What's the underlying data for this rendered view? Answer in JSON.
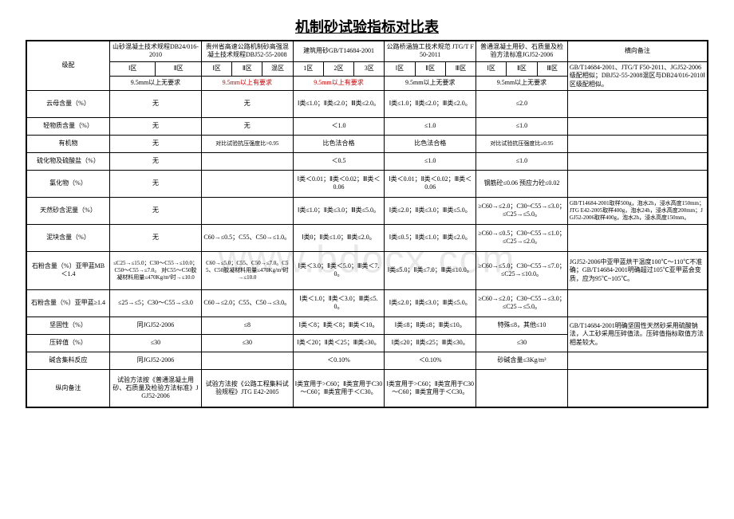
{
  "title": "机制砂试验指标对比表",
  "headers": {
    "col1": "山砂混凝土技术规程DB24/016-2010",
    "col2": "贵州省高速公路机制砂高强混凝土技术规程DBJ52-55-2008",
    "col3": "建筑用砂GB/T14684-2001",
    "col4": "公路桥涵施工技术规范 JTG/T F50-2011",
    "col5": "普通混凝土用砂、石质量及检验方法标准JGJ52-2006",
    "col6": "横向备注"
  },
  "zones": {
    "label": "级配",
    "c1a": "Ⅰ区",
    "c1b": "Ⅱ区",
    "c2a": "Ⅰ区",
    "c2b": "Ⅱ区",
    "c2c": "混区",
    "c3a": "1区",
    "c3b": "2区",
    "c3c": "3区",
    "c4a": "Ⅰ区",
    "c4b": "Ⅱ区",
    "c4c": "Ⅲ区",
    "c5a": "Ⅰ区",
    "c5b": "Ⅱ区",
    "c5c": "Ⅲ区",
    "r2c1": "9.5mm以上无要求",
    "r2c2": "9.5mm以上有要求",
    "r2c3": "9.5mm以上有要求",
    "r2c4": "9.5mm以上无要求",
    "r2c5": "9.5mm以上无要求",
    "r2note": "GB/T14684-2001、JTG/T F50-2011、JGJ52-2006级配相似；DBJ52-55-2008混区与DB24/016-2010Ⅰ区级配相似。"
  },
  "rows": {
    "yunmu": {
      "label": "云母含量（%）",
      "c1": "无",
      "c2": "无",
      "c3": "Ⅰ类≤1.0；Ⅱ类≤2.0；Ⅲ类≤2.0。",
      "c4": "Ⅰ类≤1.0；Ⅱ类≤2.0；Ⅲ类≤2.0。",
      "c5": "≤2.0",
      "note": ""
    },
    "qingwu": {
      "label": "轻物质含量（%）",
      "c1": "无",
      "c2": "无",
      "c3": "＜1.0",
      "c4": "≤1.0",
      "c5": "≤1.0",
      "note": ""
    },
    "youji": {
      "label": "有机物",
      "c1": "无",
      "c2": "对比试验抗压强度比>0.95",
      "c3": "比色法合格",
      "c4": "比色法合格",
      "c5": "对比试验抗压强度比≥0.95",
      "note": ""
    },
    "liuhua": {
      "label": "硫化物及硫酸盐（%）",
      "c1": "无",
      "c2": "",
      "c3": "＜0.5",
      "c4": "≤1.0",
      "c5": "≤1.0",
      "note": ""
    },
    "lvhua": {
      "label": "氯化物（%）",
      "c1": "无",
      "c2": "",
      "c3": "Ⅰ类＜0.01；Ⅱ类＜0.02；Ⅲ类＜0.06",
      "c4": "Ⅰ类＜0.01；Ⅱ类＜0.02；Ⅲ类＜0.06",
      "c5": "钢筋砼≤0.06 预应力砼≤0.02",
      "note": ""
    },
    "tianran": {
      "label": "天然砂含泥量（%）",
      "c1": "无",
      "c2": "",
      "c3": "Ⅰ类≤1.0；Ⅱ类≤3.0；Ⅲ类≤5.0。",
      "c4": "Ⅰ类≤2.0；Ⅱ类≤3.0；Ⅲ类≤5.0。",
      "c5": "≥C60→≤2.0；C30~C55→≤3.0；≤C25→≤5.0。",
      "note": "GB/T14684-2001取样500g，泡水2h，浸水高度150mm；JTG E42-2005取样400g，泡水24h，浸水高度200mm；JGJ52-2006取样400g，泡水2h，浸水高度150mm。"
    },
    "nikuai": {
      "label": "泥块含量（%）",
      "c1": "无",
      "c2": "C60→≤0.5；C55、C50→≤1.0。",
      "c3": "Ⅰ类0；Ⅱ类≤1.0；Ⅲ类≤2.0。",
      "c4": "Ⅰ类≤0.5；Ⅱ类≤1.0；Ⅲ类≤2.0。",
      "c5": "≥C60→≤0.5；C30~C55→≤1.0；≤C25→≤2.0。",
      "note": ""
    },
    "shifen1": {
      "label": "石粉含量（%）亚甲蓝MB＜1.4",
      "c1": "≤C25→≤15.0；C30～C55→≤10.0；C50～C55→≤7.0。 对C55～C50胶凝材料用量≤470Kg/m³时→≤10.0",
      "c2": "C60→≤5.0；C55、C50→≤7.0。C55、C50胶凝材料用量≤470Kg/m³时→≤10.0",
      "c3": "Ⅰ类＜3.0；Ⅱ类＜5.0；Ⅲ类＜7.0。",
      "c4": "Ⅰ类≤5.0；Ⅱ类≤7.0；Ⅲ类≤10.0。",
      "c5": "≥C60→≤5.0；C30~C55→≤7.0；≤C25→≤10.0。",
      "note": "JGJ52-2006中亚甲蓝烘干温度100℃～110℃不准确；GB/T14684-2001明确超过105℃亚甲蓝会变质，应为95℃~105℃。"
    },
    "shifen2": {
      "label": "石粉含量（%）亚甲蓝≥1.4",
      "c1": "≤25→≤5；C30～C55→≤3.0",
      "c2": "C60→≤2.0；C55、C50→≤3.0。",
      "c3": "Ⅰ类＜1.0；Ⅱ类＜3.0；Ⅲ类≤5.0。",
      "c4": "Ⅰ类≤2.0；Ⅱ类≤3.0；Ⅲ类≤5.0。",
      "c5": "≥C60→≤2.0；C30~C55→≤3.0；≤C25→≤5.0。",
      "note": ""
    },
    "jiangu": {
      "label": "坚固性（%）",
      "c1": "同JGJ52-2006",
      "c2": "≤8",
      "c3": "Ⅰ类＜8；Ⅱ类＜8；Ⅲ类＜10。",
      "c4": "Ⅰ类≤8；Ⅱ类≤8；Ⅲ类≤10。",
      "c5": "特殊≤8，其他≤10",
      "note": "GB/T14684-2001明确坚固性天然砂采用硫酸钠法，人工砂采用压碎值法。压碎值指标取值方法相差较大。"
    },
    "yasui": {
      "label": "压碎值（%）",
      "c1": "≤30",
      "c2": "≤30",
      "c3": "Ⅰ类＜20；Ⅱ类＜25；Ⅲ类≤30。",
      "c4": "Ⅰ类≤20；Ⅱ类≤25；Ⅲ类≤30。",
      "c5": "≤30"
    },
    "jianjiliao": {
      "label": "碱含集料反应",
      "c1": "同JGJ52-2006",
      "c2": "",
      "c3": "＜0.10%",
      "c4": "＜0.10%",
      "c5": "砂碱含量≤3Kg/m³",
      "note": ""
    },
    "zongxiang": {
      "label": "纵向备注",
      "c1": "试验方法按《普通混凝土用砂、石质量及检验方法标准》JGJ52-2006",
      "c2": "试验方法按《公路工程集料试验规程》JTG E42-2005",
      "c3": "Ⅰ类宜用于>C60；Ⅱ类宜用于C30～C60；Ⅲ类宜用于＜C30。",
      "c4": "Ⅰ类宜用于>C60；Ⅱ类宜用于C30～C60；Ⅲ类宜用于＜C30。",
      "c5": "",
      "note": ""
    }
  }
}
